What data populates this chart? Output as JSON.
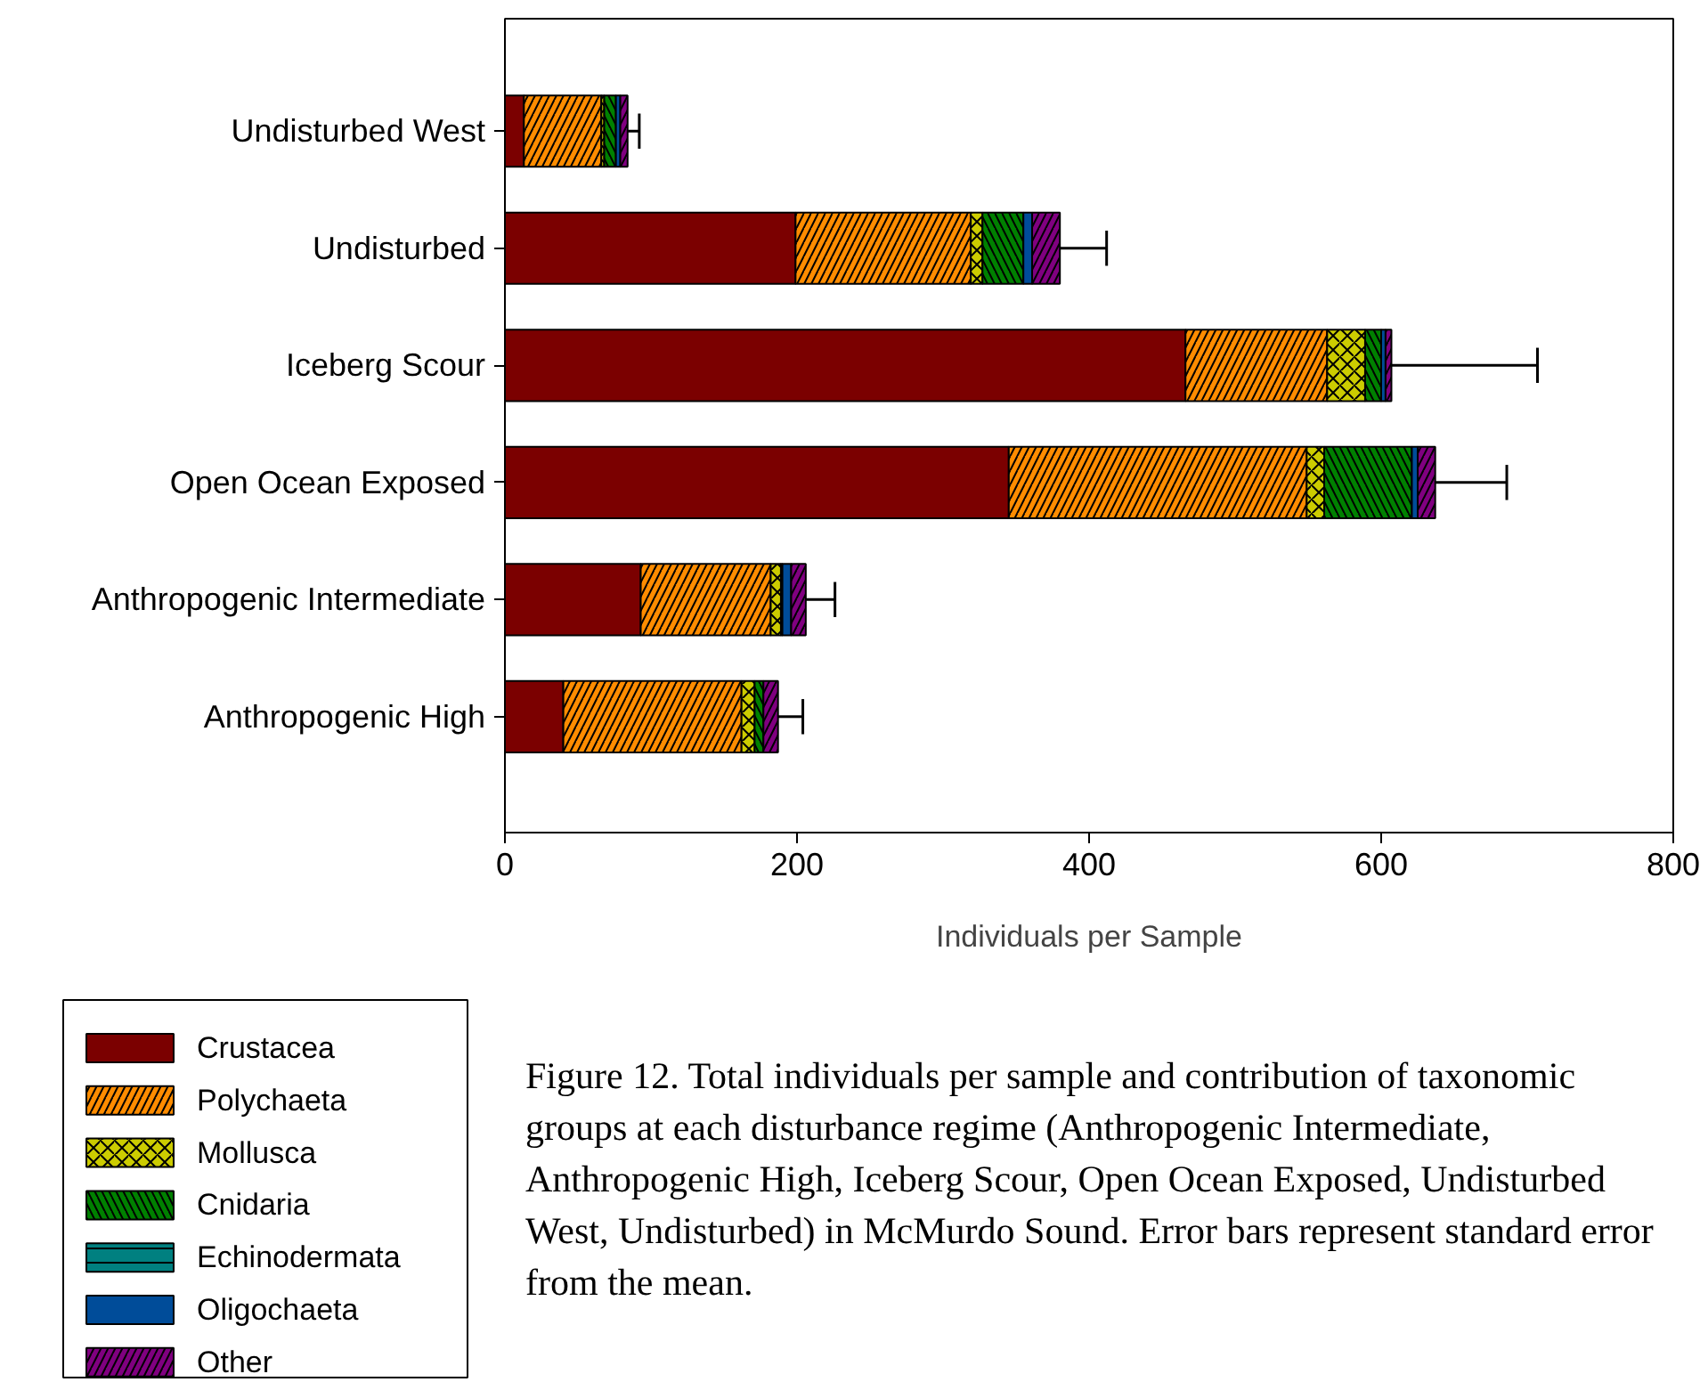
{
  "chart_data": {
    "type": "bar",
    "orientation": "horizontal",
    "stacked": true,
    "categories": [
      "Undisturbed West",
      "Undisturbed",
      "Iceberg Scour",
      "Open Ocean Exposed",
      "Anthropogenic Intermediate",
      "Anthropogenic High"
    ],
    "series": [
      {
        "name": "Crustacea",
        "color": "#7b0000",
        "values": [
          13,
          199,
          466,
          345,
          93,
          40
        ]
      },
      {
        "name": "Polychaeta",
        "color": "#ff8c00",
        "values": [
          53,
          120,
          97,
          204,
          89,
          122
        ]
      },
      {
        "name": "Mollusca",
        "color": "#cccc00",
        "values": [
          2,
          8,
          26,
          12,
          7,
          9
        ]
      },
      {
        "name": "Cnidaria",
        "color": "#008000",
        "values": [
          8,
          28,
          11,
          60,
          1,
          6
        ]
      },
      {
        "name": "Echinodermata",
        "color": "#008080",
        "values": [
          null,
          null,
          null,
          null,
          null,
          null
        ]
      },
      {
        "name": "Oligochaeta",
        "color": "#004c99",
        "values": [
          3,
          6,
          3,
          4,
          6,
          null
        ]
      },
      {
        "name": "Other",
        "color": "#800080",
        "values": [
          5,
          19,
          4,
          12,
          10,
          10
        ],
        "errors": [
          8,
          32,
          100,
          49,
          20,
          17
        ]
      }
    ],
    "xlabel": "Individuals per Sample",
    "xlim": [
      0,
      800
    ],
    "xticks": [
      0,
      200,
      400,
      600,
      800
    ],
    "grid": false,
    "legend": "bottom left",
    "annotations": [
      "Figure 12. Total individuals per sample and contribution of taxonomic groups at each disturbance regime (Anthropogenic Intermediate, Anthropogenic High, Iceberg Scour, Open Ocean Exposed, Undisturbed West, Undisturbed) in McMurdo Sound. Error bars represent standard error from the mean."
    ]
  }
}
